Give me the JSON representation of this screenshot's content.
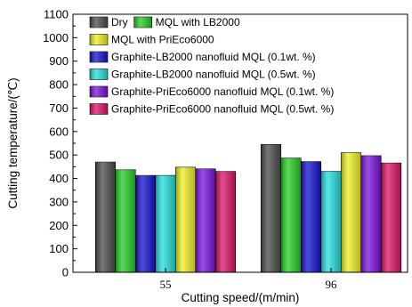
{
  "chart_data": {
    "type": "bar",
    "xlabel": "Cutting speed/(m/min)",
    "ylabel": "Cutting temperature/(℃)",
    "ylim": [
      0,
      1100
    ],
    "yticks": [
      "0",
      "100",
      "200",
      "300",
      "400",
      "500",
      "600",
      "700",
      "800",
      "900",
      "1000",
      "1100"
    ],
    "categories": [
      "55",
      "96"
    ],
    "grid": false,
    "series": [
      {
        "name": "Dry",
        "color": "#4a4a4a",
        "values": [
          470,
          545
        ]
      },
      {
        "name": "MQL with LB2000",
        "color": "#22cc22",
        "values": [
          437,
          487
        ]
      },
      {
        "name": "Graphite-LB2000 nanofluid MQL (0.1wt. %)",
        "color": "#1111cc",
        "values": [
          413,
          472
        ]
      },
      {
        "name": "Graphite-LB2000 nanofluid MQL (0.5wt. %)",
        "color": "#22dddd",
        "values": [
          413,
          430
        ]
      },
      {
        "name": "MQL with PriEco6000",
        "color": "#eeee22",
        "values": [
          448,
          510
        ]
      },
      {
        "name": "Graphite-PriEco6000 nanofluid MQL (0.1wt. %)",
        "color": "#7711dd",
        "values": [
          441,
          497
        ]
      },
      {
        "name": "Graphite-PriEco6000 nanofluid MQL (0.5wt. %)",
        "color": "#dd1166",
        "values": [
          430,
          466
        ]
      }
    ],
    "legend": {
      "placement": "top-right",
      "rows": [
        [
          "Dry",
          "MQL with LB2000"
        ],
        [
          "MQL with PriEco6000"
        ],
        [
          "Graphite-LB2000 nanofluid MQL (0.1wt. %)"
        ],
        [
          "Graphite-LB2000 nanofluid MQL (0.5wt. %)"
        ],
        [
          "Graphite-PriEco6000 nanofluid MQL (0.1wt. %)"
        ],
        [
          "Graphite-PriEco6000 nanofluid MQL (0.5wt. %)"
        ]
      ]
    }
  }
}
